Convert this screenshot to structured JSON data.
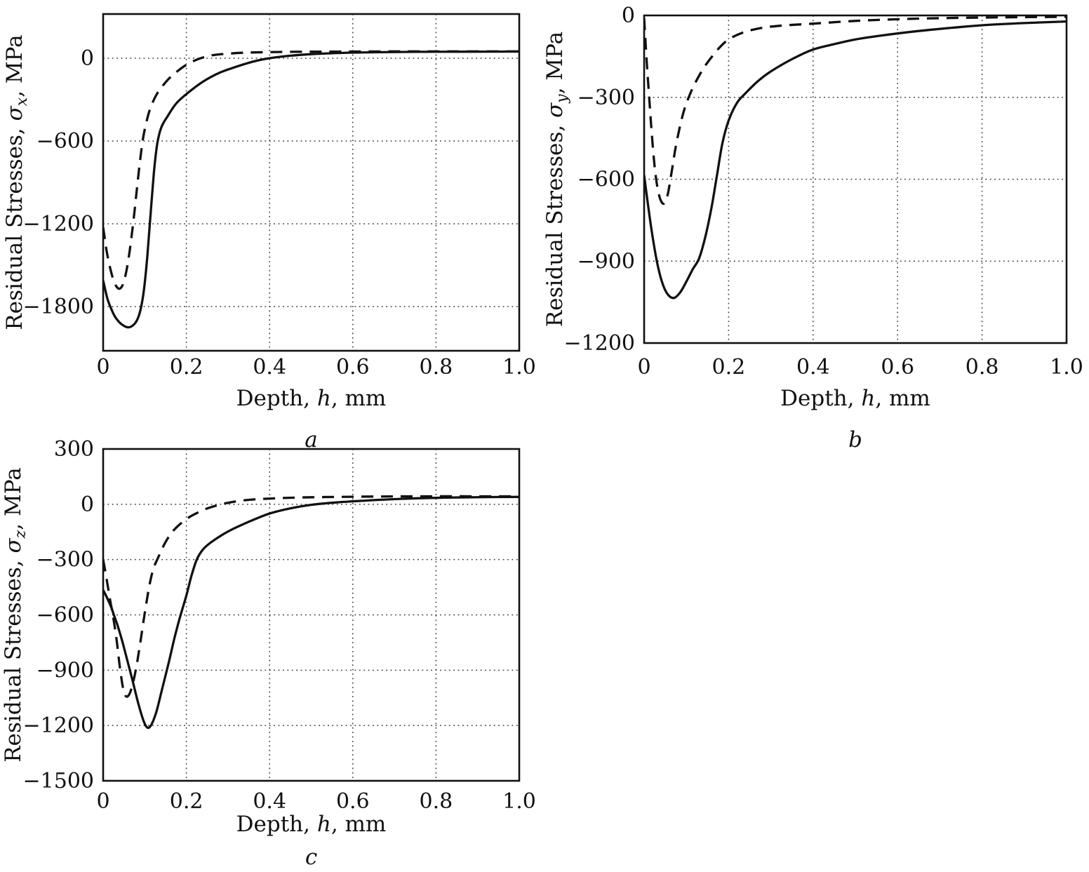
{
  "figure": {
    "background": "#ffffff",
    "ink_color": "#111111",
    "grid_color": "#3a3a3a",
    "legend": "none",
    "title": ""
  },
  "chart_data": [
    {
      "id": "a",
      "type": "line",
      "subplot_label": "a",
      "xlabel": {
        "prefix": "Depth, ",
        "var": "h",
        "suffix": ", mm"
      },
      "ylabel": {
        "prefix": "Residual Stresses, ",
        "var": "σ",
        "sub": "x",
        "suffix": ", MPa"
      },
      "xlim": [
        0,
        1.0
      ],
      "ylim": [
        -2120,
        320
      ],
      "xticks": {
        "values": [
          0,
          0.2,
          0.4,
          0.6,
          0.8,
          1.0
        ],
        "labels": [
          "0",
          "0.2",
          "0.4",
          "0.6",
          "0.8",
          "1.0"
        ]
      },
      "yticks": {
        "values": [
          0,
          -600,
          -1200,
          -1800
        ],
        "labels": [
          "0",
          "−600",
          "−1200",
          "−1800"
        ]
      },
      "grid": true,
      "series": [
        {
          "name": "solid-curve",
          "line_style": "solid",
          "color": "#111111",
          "points": [
            [
              0,
              -1610
            ],
            [
              0.01,
              -1740
            ],
            [
              0.02,
              -1820
            ],
            [
              0.03,
              -1880
            ],
            [
              0.045,
              -1930
            ],
            [
              0.06,
              -1950
            ],
            [
              0.072,
              -1935
            ],
            [
              0.082,
              -1895
            ],
            [
              0.09,
              -1820
            ],
            [
              0.098,
              -1680
            ],
            [
              0.106,
              -1440
            ],
            [
              0.114,
              -1130
            ],
            [
              0.122,
              -830
            ],
            [
              0.13,
              -620
            ],
            [
              0.14,
              -500
            ],
            [
              0.155,
              -420
            ],
            [
              0.175,
              -330
            ],
            [
              0.2,
              -260
            ],
            [
              0.24,
              -170
            ],
            [
              0.28,
              -105
            ],
            [
              0.32,
              -62
            ],
            [
              0.36,
              -25
            ],
            [
              0.4,
              0
            ],
            [
              0.45,
              18
            ],
            [
              0.5,
              29
            ],
            [
              0.57,
              38
            ],
            [
              0.65,
              43
            ],
            [
              0.75,
              46
            ],
            [
              0.87,
              47
            ],
            [
              1.0,
              48
            ]
          ]
        },
        {
          "name": "dashed-curve",
          "line_style": "dashed",
          "color": "#111111",
          "points": [
            [
              0,
              -1225
            ],
            [
              0.008,
              -1390
            ],
            [
              0.016,
              -1510
            ],
            [
              0.024,
              -1600
            ],
            [
              0.032,
              -1655
            ],
            [
              0.04,
              -1670
            ],
            [
              0.048,
              -1635
            ],
            [
              0.056,
              -1540
            ],
            [
              0.064,
              -1390
            ],
            [
              0.072,
              -1200
            ],
            [
              0.08,
              -980
            ],
            [
              0.088,
              -760
            ],
            [
              0.096,
              -580
            ],
            [
              0.105,
              -450
            ],
            [
              0.115,
              -350
            ],
            [
              0.13,
              -255
            ],
            [
              0.15,
              -175
            ],
            [
              0.17,
              -115
            ],
            [
              0.2,
              -48
            ],
            [
              0.23,
              -5
            ],
            [
              0.26,
              20
            ],
            [
              0.3,
              33
            ],
            [
              0.35,
              41
            ],
            [
              0.42,
              45
            ],
            [
              0.5,
              47
            ],
            [
              0.6,
              48
            ],
            [
              0.75,
              49
            ],
            [
              1.0,
              49
            ]
          ]
        }
      ]
    },
    {
      "id": "b",
      "type": "line",
      "subplot_label": "b",
      "xlabel": {
        "prefix": "Depth, ",
        "var": "h",
        "suffix": ", mm"
      },
      "ylabel": {
        "prefix": "Residual Stresses, ",
        "var": "σ",
        "sub": "y",
        "suffix": ", MPa"
      },
      "xlim": [
        0,
        1.0
      ],
      "ylim": [
        -1200,
        0
      ],
      "xticks": {
        "values": [
          0,
          0.2,
          0.4,
          0.6,
          0.8,
          1.0
        ],
        "labels": [
          "0",
          "0.2",
          "0.4",
          "0.6",
          "0.8",
          "1.0"
        ]
      },
      "yticks": {
        "values": [
          0,
          -300,
          -600,
          -900,
          -1200
        ],
        "labels": [
          "0",
          "−300",
          "−600",
          "−900",
          "−1200"
        ]
      },
      "grid": true,
      "series": [
        {
          "name": "solid-curve",
          "line_style": "solid",
          "color": "#111111",
          "points": [
            [
              0,
              -585
            ],
            [
              0.008,
              -680
            ],
            [
              0.018,
              -790
            ],
            [
              0.03,
              -900
            ],
            [
              0.042,
              -975
            ],
            [
              0.055,
              -1020
            ],
            [
              0.07,
              -1035
            ],
            [
              0.085,
              -1015
            ],
            [
              0.1,
              -975
            ],
            [
              0.115,
              -930
            ],
            [
              0.13,
              -890
            ],
            [
              0.145,
              -810
            ],
            [
              0.16,
              -700
            ],
            [
              0.172,
              -590
            ],
            [
              0.185,
              -470
            ],
            [
              0.2,
              -385
            ],
            [
              0.22,
              -320
            ],
            [
              0.24,
              -285
            ],
            [
              0.27,
              -240
            ],
            [
              0.3,
              -205
            ],
            [
              0.35,
              -160
            ],
            [
              0.4,
              -125
            ],
            [
              0.45,
              -105
            ],
            [
              0.5,
              -88
            ],
            [
              0.57,
              -72
            ],
            [
              0.65,
              -57
            ],
            [
              0.73,
              -45
            ],
            [
              0.8,
              -36
            ],
            [
              0.9,
              -28
            ],
            [
              1.0,
              -22
            ]
          ]
        },
        {
          "name": "dashed-curve",
          "line_style": "dashed",
          "color": "#111111",
          "points": [
            [
              0,
              -10
            ],
            [
              0.003,
              -90
            ],
            [
              0.007,
              -190
            ],
            [
              0.012,
              -300
            ],
            [
              0.018,
              -430
            ],
            [
              0.025,
              -555
            ],
            [
              0.032,
              -635
            ],
            [
              0.04,
              -680
            ],
            [
              0.048,
              -688
            ],
            [
              0.056,
              -655
            ],
            [
              0.065,
              -575
            ],
            [
              0.075,
              -480
            ],
            [
              0.085,
              -405
            ],
            [
              0.095,
              -345
            ],
            [
              0.106,
              -298
            ],
            [
              0.12,
              -250
            ],
            [
              0.14,
              -195
            ],
            [
              0.16,
              -152
            ],
            [
              0.18,
              -115
            ],
            [
              0.2,
              -88
            ],
            [
              0.23,
              -65
            ],
            [
              0.27,
              -48
            ],
            [
              0.32,
              -38
            ],
            [
              0.4,
              -30
            ],
            [
              0.5,
              -20
            ],
            [
              0.6,
              -14
            ],
            [
              0.7,
              -10
            ],
            [
              0.85,
              -7
            ],
            [
              1.0,
              -5
            ]
          ]
        }
      ]
    },
    {
      "id": "c",
      "type": "line",
      "subplot_label": "c",
      "xlabel": {
        "prefix": "Depth, ",
        "var": "h",
        "suffix": ", mm"
      },
      "ylabel": {
        "prefix": "Residual Stresses, ",
        "var": "σ",
        "sub": "z",
        "suffix": ", MPa"
      },
      "xlim": [
        0,
        1.0
      ],
      "ylim": [
        -1500,
        300
      ],
      "xticks": {
        "values": [
          0,
          0.2,
          0.4,
          0.6,
          0.8,
          1.0
        ],
        "labels": [
          "0",
          "0.2",
          "0.4",
          "0.6",
          "0.8",
          "1.0"
        ]
      },
      "yticks": {
        "values": [
          300,
          0,
          -300,
          -600,
          -900,
          -1200,
          -1500
        ],
        "labels": [
          "300",
          "0",
          "−300",
          "−600",
          "−900",
          "−1200",
          "−1500"
        ]
      },
      "grid": true,
      "series": [
        {
          "name": "solid-curve",
          "line_style": "solid",
          "color": "#111111",
          "points": [
            [
              0,
              -465
            ],
            [
              0.01,
              -510
            ],
            [
              0.02,
              -562
            ],
            [
              0.025,
              -595
            ],
            [
              0.035,
              -660
            ],
            [
              0.045,
              -735
            ],
            [
              0.055,
              -820
            ],
            [
              0.07,
              -950
            ],
            [
              0.085,
              -1085
            ],
            [
              0.098,
              -1180
            ],
            [
              0.107,
              -1212
            ],
            [
              0.116,
              -1195
            ],
            [
              0.128,
              -1125
            ],
            [
              0.142,
              -1000
            ],
            [
              0.158,
              -855
            ],
            [
              0.172,
              -720
            ],
            [
              0.185,
              -610
            ],
            [
              0.2,
              -495
            ],
            [
              0.212,
              -390
            ],
            [
              0.225,
              -300
            ],
            [
              0.24,
              -245
            ],
            [
              0.26,
              -205
            ],
            [
              0.3,
              -148
            ],
            [
              0.35,
              -95
            ],
            [
              0.4,
              -50
            ],
            [
              0.45,
              -22
            ],
            [
              0.5,
              -3
            ],
            [
              0.56,
              10
            ],
            [
              0.63,
              20
            ],
            [
              0.72,
              30
            ],
            [
              0.82,
              36
            ],
            [
              0.92,
              39
            ],
            [
              1.0,
              40
            ]
          ]
        },
        {
          "name": "dashed-curve",
          "line_style": "dashed",
          "color": "#111111",
          "points": [
            [
              0,
              -300
            ],
            [
              0.008,
              -400
            ],
            [
              0.016,
              -510
            ],
            [
              0.024,
              -610
            ],
            [
              0.032,
              -730
            ],
            [
              0.04,
              -880
            ],
            [
              0.048,
              -1000
            ],
            [
              0.055,
              -1042
            ],
            [
              0.063,
              -1030
            ],
            [
              0.071,
              -975
            ],
            [
              0.08,
              -880
            ],
            [
              0.09,
              -740
            ],
            [
              0.1,
              -590
            ],
            [
              0.11,
              -455
            ],
            [
              0.12,
              -355
            ],
            [
              0.132,
              -290
            ],
            [
              0.15,
              -205
            ],
            [
              0.17,
              -140
            ],
            [
              0.2,
              -80
            ],
            [
              0.23,
              -42
            ],
            [
              0.26,
              -15
            ],
            [
              0.3,
              8
            ],
            [
              0.35,
              24
            ],
            [
              0.42,
              33
            ],
            [
              0.5,
              38
            ],
            [
              0.6,
              41
            ],
            [
              0.75,
              43
            ],
            [
              1.0,
              43
            ]
          ]
        }
      ]
    }
  ]
}
